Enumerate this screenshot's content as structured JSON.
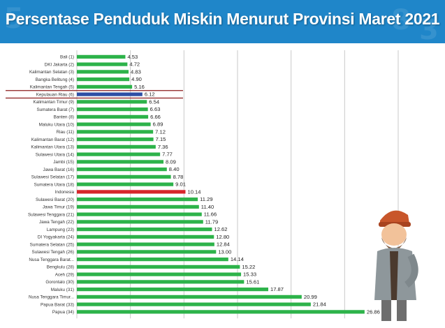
{
  "header": {
    "title": "Persentase Penduduk Miskin Menurut Provinsi Maret 2021"
  },
  "colors": {
    "header_bg": "#1f86c9",
    "bar_default": "#2db34a",
    "bar_highlight": "#2e4fa5",
    "bar_national": "#d7262b",
    "highlight_line": "#8b1c1c",
    "grid": "#c9c9c9"
  },
  "chart_data": {
    "type": "bar",
    "orientation": "horizontal",
    "title": "Persentase Penduduk Miskin Menurut Provinsi Maret 2021",
    "xlabel": "",
    "ylabel": "",
    "xlim": [
      0,
      30
    ],
    "grid": true,
    "legend": "none",
    "highlight_category": "Kepulauan Riau (6)",
    "national_category": "Indonesia",
    "categories": [
      "Bali (1)",
      "DKI Jakarta (2)",
      "Kalimantan Selatan (3)",
      "Bangka Belitung (4)",
      "Kalimantan Tengah (5)",
      "Kepulauan Riau (6)",
      "Kalimantan Timur (9)",
      "Sumatera Barat (7)",
      "Banten (8)",
      "Maluku Utara (10)",
      "Riau (11)",
      "Kalimantan Barat (12)",
      "Kalimantan Utara (13)",
      "Sulawesi Utara (14)",
      "Jambi (15)",
      "Jawa Barat (16)",
      "Sulawesi Selatan (17)",
      "Sumatera Utara (18)",
      "Indonesia",
      "Sulawesi Barat (20)",
      "Jawa Timur (19)",
      "Sulawesi Tenggara (21)",
      "Jawa Tengah (22)",
      "Lampung (23)",
      "DI Yogyakarta (24)",
      "Sumatera Selatan (25)",
      "Sulawesi Tengah (26)",
      "Nusa Tenggara Barat...",
      "Bengkulu (28)",
      "Aceh (29)",
      "Gorontalo (30)",
      "Maluku (31)",
      "Nusa Tenggara Timur...",
      "Papua Barat (33)",
      "Papua (34)"
    ],
    "values": [
      4.53,
      4.72,
      4.83,
      4.9,
      5.16,
      6.12,
      6.54,
      6.63,
      6.66,
      6.89,
      7.12,
      7.15,
      7.36,
      7.77,
      8.09,
      8.4,
      8.78,
      9.01,
      10.14,
      11.29,
      11.4,
      11.66,
      11.79,
      12.62,
      12.8,
      12.84,
      13.0,
      14.14,
      15.22,
      15.33,
      15.61,
      17.87,
      20.99,
      21.84,
      26.86
    ],
    "value_labels": [
      "4.53",
      "4.72",
      "4.83",
      "4.90",
      "5.16",
      "6.12",
      "6.54",
      "6.63",
      "6.66",
      "6.89",
      "7.12",
      "7.15",
      "7.36",
      "7.77",
      "8.09",
      "8.40",
      "8.78",
      "9.01",
      "10.14",
      "11.29",
      "11.40",
      "11.66",
      "11.79",
      "12.62",
      "12.80",
      "12.84",
      "13.00",
      "14.14",
      "15.22",
      "15.33",
      "15.61",
      "17.87",
      "20.99",
      "21.84",
      "26.86"
    ]
  }
}
